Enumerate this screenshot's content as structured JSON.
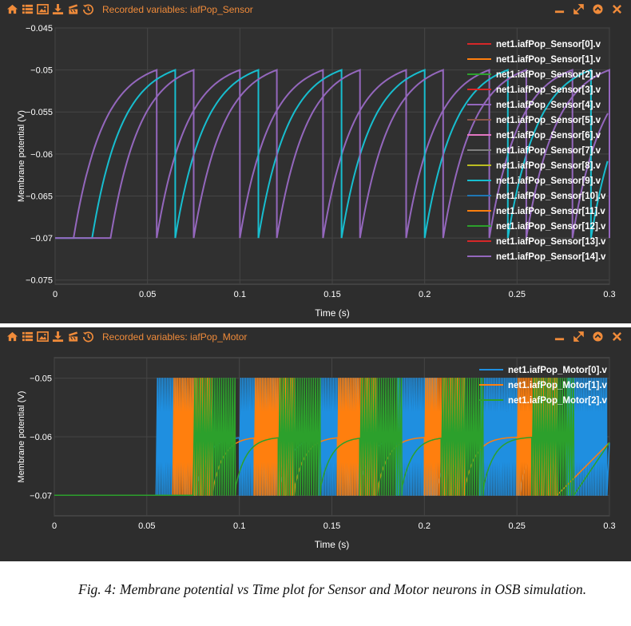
{
  "colors": {
    "accent": "#f08b3a",
    "panel_bg": "#2d2d2d",
    "plot_bg": "#303030",
    "text": "#ffffff"
  },
  "sensor_panel": {
    "title": "Recorded variables: iafPop_Sensor",
    "icons": [
      "home-icon",
      "list-icon",
      "image-icon",
      "download-icon",
      "movie-clapper-icon",
      "history-icon"
    ],
    "window_buttons": [
      "minimize-icon",
      "expand-icon",
      "collapse-icon",
      "close-icon"
    ]
  },
  "motor_panel": {
    "title": "Recorded variables: iafPop_Motor",
    "icons": [
      "home-icon",
      "list-icon",
      "image-icon",
      "download-icon",
      "movie-clapper-icon",
      "history-icon"
    ],
    "window_buttons": [
      "minimize-icon",
      "expand-icon",
      "collapse-icon",
      "close-icon"
    ]
  },
  "chart_data": [
    {
      "type": "line",
      "xlabel": "Time (s)",
      "ylabel": "Membrane potential (V)",
      "xlim": [
        0,
        0.3
      ],
      "ylim": [
        -0.0755,
        -0.045
      ],
      "xticks": [
        "0",
        "0.05",
        "0.1",
        "0.15",
        "0.2",
        "0.25",
        "0.3"
      ],
      "xtick_values": [
        0,
        0.05,
        0.1,
        0.15,
        0.2,
        0.25,
        0.3
      ],
      "yticks": [
        "−0.045",
        "−0.05",
        "−0.055",
        "−0.06",
        "−0.065",
        "−0.07",
        "−0.075"
      ],
      "ytick_values": [
        -0.045,
        -0.05,
        -0.055,
        -0.06,
        -0.065,
        -0.07,
        -0.075
      ],
      "grid": true,
      "legend_position": "top-right",
      "series": [
        {
          "name": "net1.iafPop_Sensor[0].v",
          "color": "#d62728",
          "delay": 0.01,
          "period": 0.045,
          "visible": false
        },
        {
          "name": "net1.iafPop_Sensor[1].v",
          "color": "#ff7f0e",
          "delay": 0.01,
          "period": 0.045,
          "visible": false
        },
        {
          "name": "net1.iafPop_Sensor[2].v",
          "color": "#2ca02c",
          "delay": 0.02,
          "period": 0.045,
          "visible": false
        },
        {
          "name": "net1.iafPop_Sensor[3].v",
          "color": "#d62728",
          "delay": 0.02,
          "period": 0.045,
          "visible": false
        },
        {
          "name": "net1.iafPop_Sensor[4].v",
          "color": "#9467bd",
          "delay": 0.01,
          "period": 0.045,
          "visible": true
        },
        {
          "name": "net1.iafPop_Sensor[5].v",
          "color": "#8c564b",
          "delay": 0.02,
          "period": 0.045,
          "visible": false
        },
        {
          "name": "net1.iafPop_Sensor[6].v",
          "color": "#e377c2",
          "delay": 0.02,
          "period": 0.045,
          "visible": false
        },
        {
          "name": "net1.iafPop_Sensor[7].v",
          "color": "#7f7f7f",
          "delay": 0.03,
          "period": 0.045,
          "visible": false
        },
        {
          "name": "net1.iafPop_Sensor[8].v",
          "color": "#bcbd22",
          "delay": 0.03,
          "period": 0.045,
          "visible": false
        },
        {
          "name": "net1.iafPop_Sensor[9].v",
          "color": "#17becf",
          "delay": 0.02,
          "period": 0.045,
          "visible": true
        },
        {
          "name": "net1.iafPop_Sensor[10].v",
          "color": "#1f77b4",
          "delay": 0.03,
          "period": 0.045,
          "visible": false
        },
        {
          "name": "net1.iafPop_Sensor[11].v",
          "color": "#ff7f0e",
          "delay": 0.03,
          "period": 0.045,
          "visible": false
        },
        {
          "name": "net1.iafPop_Sensor[12].v",
          "color": "#2ca02c",
          "delay": 0.03,
          "period": 0.045,
          "visible": false
        },
        {
          "name": "net1.iafPop_Sensor[13].v",
          "color": "#d62728",
          "delay": 0.03,
          "period": 0.045,
          "visible": false
        },
        {
          "name": "net1.iafPop_Sensor[14].v",
          "color": "#9467bd",
          "delay": 0.03,
          "period": 0.045,
          "visible": true
        }
      ]
    },
    {
      "type": "line",
      "xlabel": "Time (s)",
      "ylabel": "Membrane potential (V)",
      "xlim": [
        0,
        0.3
      ],
      "ylim": [
        -0.0735,
        -0.0465
      ],
      "xticks": [
        "0",
        "0.05",
        "0.1",
        "0.15",
        "0.2",
        "0.25",
        "0.3"
      ],
      "xtick_values": [
        0,
        0.05,
        0.1,
        0.15,
        0.2,
        0.25,
        0.3
      ],
      "yticks": [
        "−0.05",
        "−0.06",
        "−0.07"
      ],
      "ytick_values": [
        -0.05,
        -0.06,
        -0.07
      ],
      "grid": true,
      "legend_position": "top-right",
      "series": [
        {
          "name": "net1.iafPop_Motor[0].v",
          "color": "#1f8fe0",
          "burst_starts": [
            0.055,
            0.1,
            0.143,
            0.185,
            0.23,
            0.277
          ],
          "burst_length": 0.021,
          "spike_period": 0.0009
        },
        {
          "name": "net1.iafPop_Motor[1].v",
          "color": "#ff7f0e",
          "burst_starts": [
            0.064,
            0.108,
            0.153,
            0.2,
            0.25
          ],
          "burst_length": 0.021,
          "spike_period": 0.0009
        },
        {
          "name": "net1.iafPop_Motor[2].v",
          "color": "#2ca02c",
          "burst_starts": [
            0.075,
            0.121,
            0.165,
            0.209,
            0.258
          ],
          "burst_length": 0.022,
          "spike_period": 0.0012
        }
      ]
    }
  ],
  "caption": "Fig. 4: Membrane potential vs Time plot for Sensor and Motor neurons in OSB simulation."
}
